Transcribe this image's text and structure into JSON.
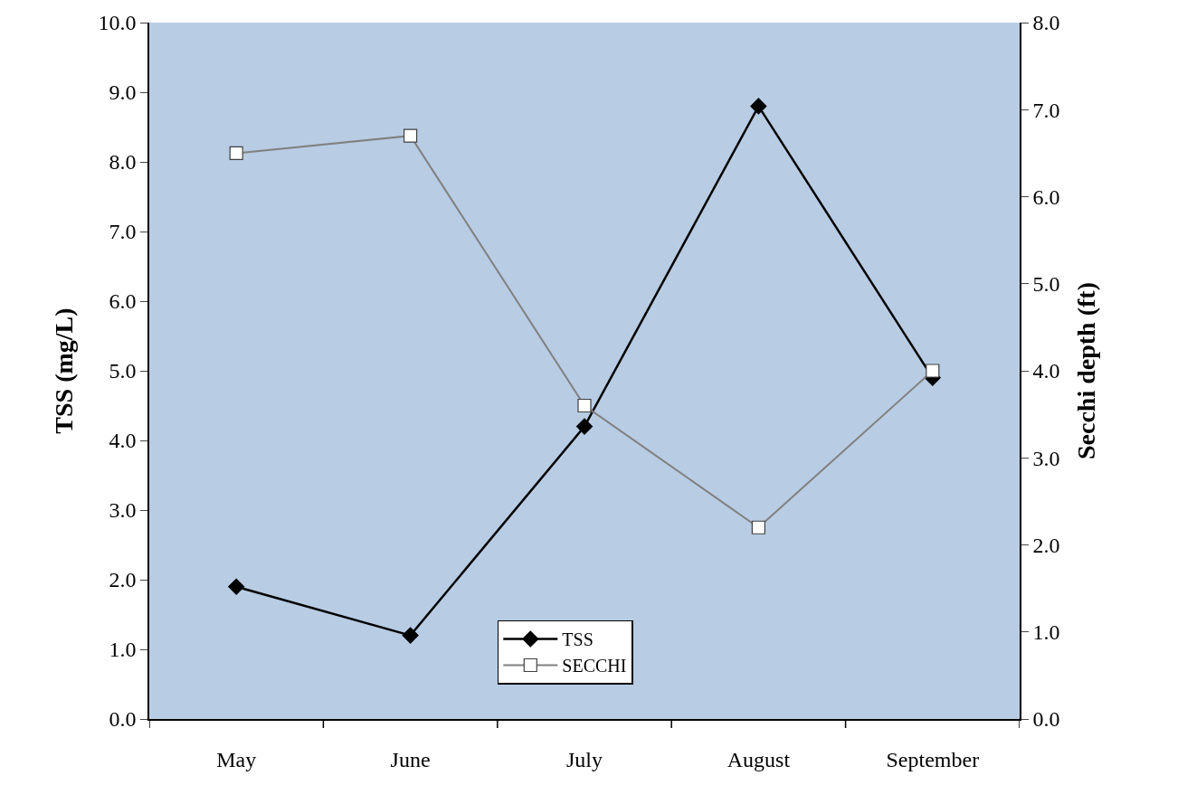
{
  "chart_data": {
    "type": "line",
    "ylabel": "TSS (mg/L)",
    "y2label": "Secchi depth (ft)",
    "categories": [
      "May",
      "June",
      "July",
      "August",
      "September"
    ],
    "series": [
      {
        "name": "TSS",
        "color": "#000000",
        "marker": "diamond",
        "values": [
          1.9,
          1.2,
          4.2,
          8.8,
          4.9
        ]
      },
      {
        "name": "SECCHI",
        "color": "#808080",
        "marker": "square",
        "axis": "y2",
        "values": [
          6.5,
          6.7,
          3.6,
          2.2,
          4.0
        ]
      }
    ],
    "ylim": [
      0,
      10
    ],
    "yticks": [
      {
        "value": 0,
        "label": "0.0"
      },
      {
        "value": 1,
        "label": "1.0"
      },
      {
        "value": 2,
        "label": "2.0"
      },
      {
        "value": 3,
        "label": "3.0"
      },
      {
        "value": 4,
        "label": "4.0"
      },
      {
        "value": 5,
        "label": "5.0"
      },
      {
        "value": 6,
        "label": "6.0"
      },
      {
        "value": 7,
        "label": "7.0"
      },
      {
        "value": 8,
        "label": "8.0"
      },
      {
        "value": 9,
        "label": "9.0"
      },
      {
        "value": 10,
        "label": "10.0"
      }
    ],
    "y2lim": [
      0,
      8
    ],
    "y2ticks": [
      {
        "value": 0,
        "label": "0.0"
      },
      {
        "value": 1,
        "label": "1.0"
      },
      {
        "value": 2,
        "label": "2.0"
      },
      {
        "value": 3,
        "label": "3.0"
      },
      {
        "value": 4,
        "label": "4.0"
      },
      {
        "value": 5,
        "label": "5.0"
      },
      {
        "value": 6,
        "label": "6.0"
      },
      {
        "value": 7,
        "label": "7.0"
      },
      {
        "value": 8,
        "label": "8.0"
      }
    ],
    "grid": false,
    "legend": "bottom",
    "line_style": "solid"
  }
}
